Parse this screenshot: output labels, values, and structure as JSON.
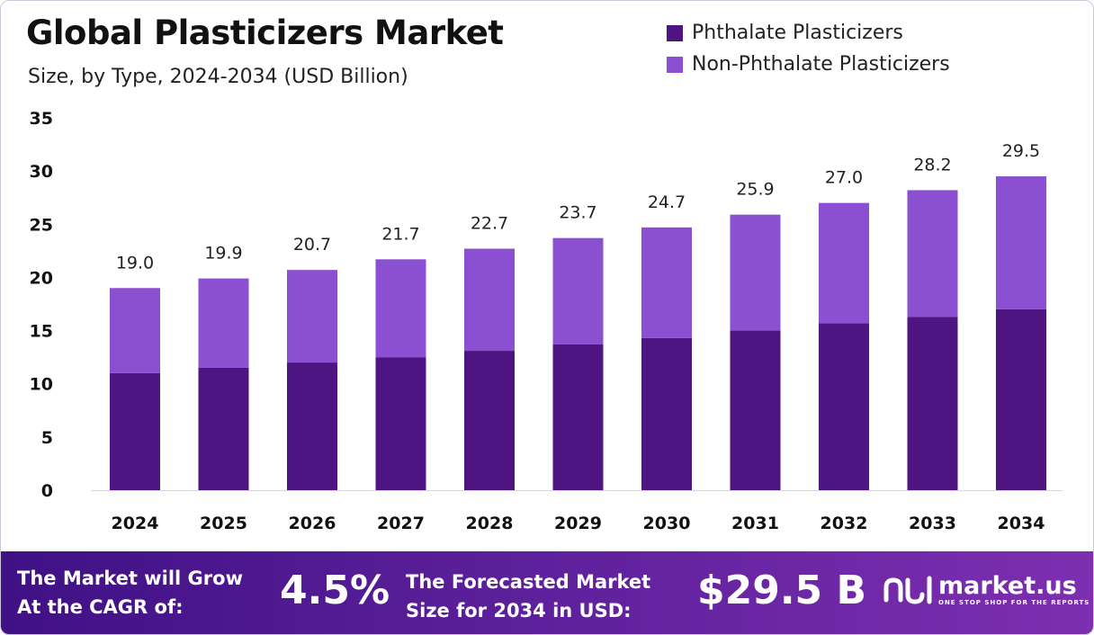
{
  "header": {
    "title": "Global Plasticizers Market",
    "subtitle": "Size, by Type, 2024-2034 (USD Billion)"
  },
  "legend": {
    "items": [
      {
        "label": "Phthalate Plasticizers",
        "color": "#4e1582"
      },
      {
        "label": "Non-Phthalate Plasticizers",
        "color": "#8b4fd1"
      }
    ]
  },
  "chart_data": {
    "type": "bar",
    "stacked": true,
    "categories": [
      "2024",
      "2025",
      "2026",
      "2027",
      "2028",
      "2029",
      "2030",
      "2031",
      "2032",
      "2033",
      "2034"
    ],
    "series": [
      {
        "name": "Phthalate Plasticizers",
        "color": "#4e1582",
        "values": [
          11.0,
          11.5,
          12.0,
          12.5,
          13.1,
          13.7,
          14.3,
          15.0,
          15.7,
          16.3,
          17.0
        ]
      },
      {
        "name": "Non-Phthalate Plasticizers",
        "color": "#8b4fd1",
        "values": [
          8.0,
          8.4,
          8.7,
          9.2,
          9.6,
          10.0,
          10.4,
          10.9,
          11.3,
          11.9,
          12.5
        ]
      }
    ],
    "totals": [
      "19.0",
      "19.9",
      "20.7",
      "21.7",
      "22.7",
      "23.7",
      "24.7",
      "25.9",
      "27.0",
      "28.2",
      "29.5"
    ],
    "ylim": [
      0,
      35
    ],
    "yticks": [
      "0",
      "5",
      "10",
      "15",
      "20",
      "25",
      "30",
      "35"
    ],
    "grid": false,
    "legend_position": "top-right"
  },
  "footer": {
    "cagr_text": "The Market will Grow\nAt the CAGR of:",
    "cagr_value": "4.5%",
    "forecast_text": "The Forecasted Market\nSize for 2034 in USD:",
    "forecast_value": "$29.5 B",
    "brand_name": "market.us",
    "brand_tagline": "ONE STOP SHOP FOR THE REPORTS",
    "brand_icon": "market-us-logo-icon"
  }
}
